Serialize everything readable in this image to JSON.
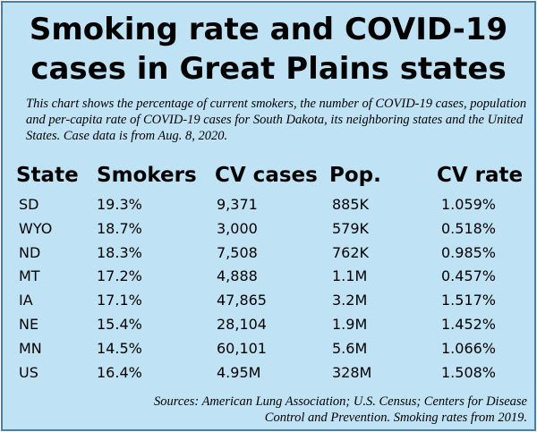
{
  "header": {
    "title_line1": "Smoking rate and COVID-19",
    "title_line2": "cases in Great Plains states",
    "description": "This chart shows the percentage of current smokers, the number of COVID-19 cases, population and per-capita rate of COVID-19 cases for South Dakota, its neighboring states and the United States. Case data is from Aug. 8, 2020."
  },
  "footer": {
    "sources": "Sources: American Lung Association; U.S. Census; Centers for Disease Control and Prevention. Smoking rates from 2019."
  },
  "colors": {
    "background": "#bfe3f5",
    "border": "#4a7fa8"
  },
  "chart_data": {
    "type": "table",
    "title": "Smoking rate and COVID-19 cases in Great Plains states",
    "columns": [
      "State",
      "Smokers",
      "CV cases",
      "Pop.",
      "CV rate"
    ],
    "rows": [
      [
        "SD",
        "19.3%",
        "9,371",
        "885K",
        "1.059%"
      ],
      [
        "WYO",
        "18.7%",
        "3,000",
        "579K",
        "0.518%"
      ],
      [
        "ND",
        "18.3%",
        "7,508",
        "762K",
        "0.985%"
      ],
      [
        "MT",
        "17.2%",
        "4,888",
        "1.1M",
        "0.457%"
      ],
      [
        "IA",
        "17.1%",
        "47,865",
        "3.2M",
        "1.517%"
      ],
      [
        "NE",
        "15.4%",
        "28,104",
        "1.9M",
        "1.452%"
      ],
      [
        "MN",
        "14.5%",
        "60,101",
        "5.6M",
        "1.066%"
      ],
      [
        "US",
        "16.4%",
        "4.95M",
        "328M",
        "1.508%"
      ]
    ]
  }
}
